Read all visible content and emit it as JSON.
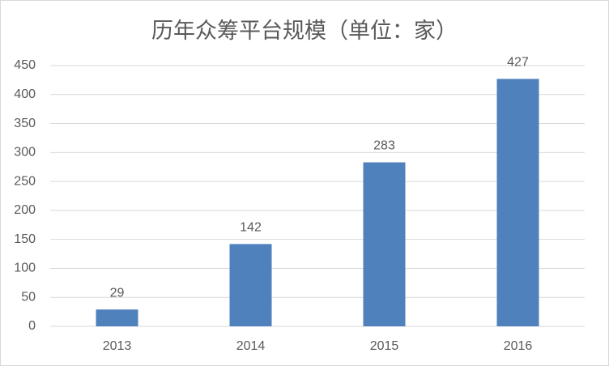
{
  "chart_data": {
    "type": "bar",
    "title": "历年众筹平台规模（单位：家）",
    "categories": [
      "2013",
      "2014",
      "2015",
      "2016"
    ],
    "values": [
      29,
      142,
      283,
      427
    ],
    "color": "#4f81bd",
    "ylim": [
      0,
      450
    ],
    "yticks": [
      0,
      50,
      100,
      150,
      200,
      250,
      300,
      350,
      400,
      450
    ],
    "grid": true
  }
}
